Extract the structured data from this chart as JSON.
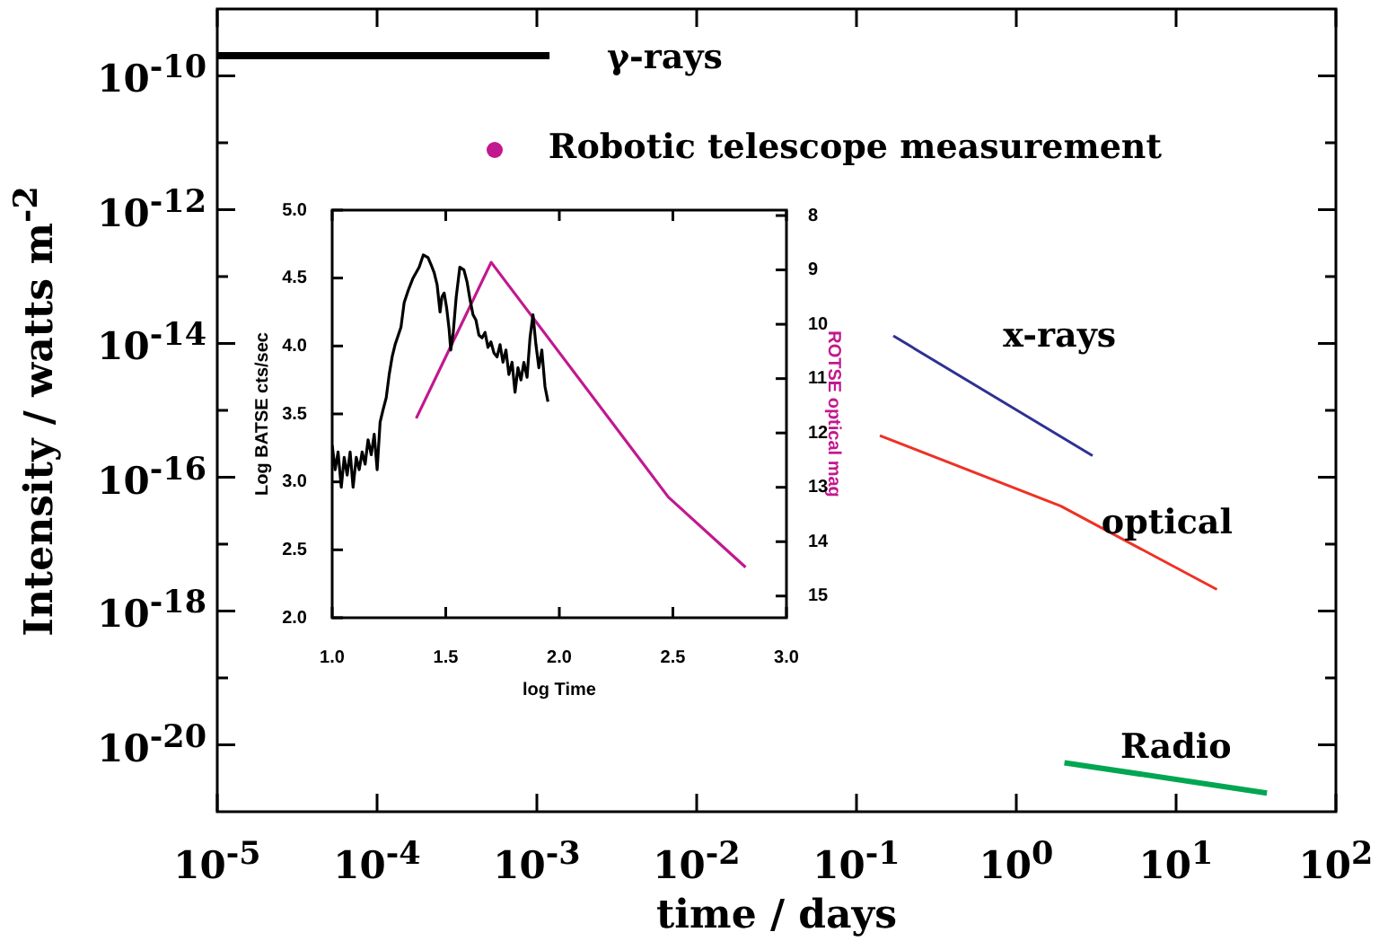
{
  "chart_data": [
    {
      "type": "line",
      "xlabel": "time / days",
      "ylabel": "Intensity / watts m$^{-2}$",
      "log": "xy",
      "marker": "none",
      "xlim": [
        1e-05,
        100
      ],
      "xticks": [
        {
          "value": 1e-05,
          "label": "10$^{-5}$"
        },
        {
          "value": 0.0001,
          "label": "10$^{-4}$"
        },
        {
          "value": 0.001,
          "label": "10$^{-3}$"
        },
        {
          "value": 0.01,
          "label": "10$^{-2}$"
        },
        {
          "value": 0.1,
          "label": "10$^{-1}$"
        },
        {
          "value": 1,
          "label": "10$^{0}$"
        },
        {
          "value": 10,
          "label": "10$^{1}$"
        },
        {
          "value": 100,
          "label": "10$^{2}$"
        }
      ],
      "ylim": [
        1e-21,
        1e-09
      ],
      "yticks": [
        {
          "value": 1e-20,
          "label": "10$^{-20}$"
        },
        {
          "value": 1e-19,
          "label": null
        },
        {
          "value": 1e-18,
          "label": "10$^{-18}$"
        },
        {
          "value": 1e-17,
          "label": null
        },
        {
          "value": 1e-16,
          "label": "10$^{-16}$"
        },
        {
          "value": 1e-15,
          "label": null
        },
        {
          "value": 1e-14,
          "label": "10$^{-14}$"
        },
        {
          "value": 1e-13,
          "label": null
        },
        {
          "value": 1e-12,
          "label": "10$^{-12}$"
        },
        {
          "value": 1e-11,
          "label": null
        },
        {
          "value": 1e-10,
          "label": "10$^{-10}$"
        }
      ],
      "series": [
        {
          "name": "γ-rays",
          "color": "#000000",
          "x": [
            1e-05,
            0.0012
          ],
          "values": [
            2e-10,
            2e-10
          ]
        },
        {
          "name": "x-rays",
          "color": "#2e3192",
          "x": [
            0.17,
            3
          ],
          "values": [
            1.3e-14,
            2.1e-16
          ]
        },
        {
          "name": "optical",
          "color": "#ee3124",
          "x": [
            0.14,
            1.9,
            18
          ],
          "values": [
            4.2e-16,
            3.7e-17,
            2.1e-18
          ]
        },
        {
          "name": "Radio",
          "color": "#00a651",
          "x": [
            2,
            37
          ],
          "values": [
            5.4e-21,
            1.9e-21
          ]
        }
      ],
      "annotations": [
        "Robotic telescope measurement"
      ]
    },
    {
      "type": "line",
      "xlabel": "log Time",
      "ylabel": "Log BATSE cts/sec",
      "y2label": "ROTSE optical mag",
      "marker": "none",
      "xlim": [
        1,
        3
      ],
      "xticks": [
        {
          "value": 1,
          "label": "1.0"
        },
        {
          "value": 1.5,
          "label": "1.5"
        },
        {
          "value": 2,
          "label": "2.0"
        },
        {
          "value": 2.5,
          "label": "2.5"
        },
        {
          "value": 3,
          "label": "3.0"
        }
      ],
      "ylim": [
        2,
        5
      ],
      "yticks": [
        {
          "value": 2,
          "label": "2.0"
        },
        {
          "value": 2.5,
          "label": "2.5"
        },
        {
          "value": 3,
          "label": "3.0"
        },
        {
          "value": 3.5,
          "label": "3.5"
        },
        {
          "value": 4,
          "label": "4.0"
        },
        {
          "value": 4.5,
          "label": "4.5"
        },
        {
          "value": 5,
          "label": "5.0"
        }
      ],
      "y2lim": [
        15.4,
        7.9
      ],
      "y2ticks": [
        8,
        9,
        10,
        11,
        12,
        13,
        14,
        15
      ],
      "series": [
        {
          "color": "#000000",
          "x": [
            1.0,
            1.013,
            1.026,
            1.04,
            1.053,
            1.066,
            1.079,
            1.092,
            1.106,
            1.119,
            1.132,
            1.145,
            1.158,
            1.172,
            1.185,
            1.198,
            1.211,
            1.224,
            1.238,
            1.251,
            1.264,
            1.277,
            1.303,
            1.317,
            1.335,
            1.356,
            1.383,
            1.401,
            1.422,
            1.435,
            1.449,
            1.462,
            1.475,
            1.483,
            1.493,
            1.504,
            1.515,
            1.522,
            1.533,
            1.546,
            1.562,
            1.58,
            1.594,
            1.607,
            1.62,
            1.633,
            1.646,
            1.66,
            1.673,
            1.686,
            1.699,
            1.712,
            1.726,
            1.739,
            1.752,
            1.765,
            1.778,
            1.792,
            1.805,
            1.818,
            1.831,
            1.844,
            1.858,
            1.871,
            1.884,
            1.897,
            1.91,
            1.923,
            1.937,
            1.95,
            1.955
          ],
          "values": [
            3.27,
            3.09,
            3.22,
            2.96,
            3.18,
            3.05,
            3.22,
            2.96,
            3.18,
            3.09,
            3.22,
            3.13,
            3.31,
            3.2,
            3.35,
            3.09,
            3.44,
            3.53,
            3.62,
            3.79,
            3.92,
            4.01,
            4.14,
            4.32,
            4.41,
            4.5,
            4.58,
            4.67,
            4.65,
            4.6,
            4.54,
            4.45,
            4.25,
            4.36,
            4.39,
            4.28,
            4.12,
            3.97,
            4.1,
            4.36,
            4.58,
            4.56,
            4.47,
            4.34,
            4.23,
            4.19,
            4.08,
            4.06,
            4.1,
            3.99,
            4.03,
            3.95,
            3.92,
            4.01,
            3.88,
            3.97,
            3.79,
            3.88,
            3.66,
            3.84,
            3.75,
            3.88,
            3.77,
            4.06,
            4.23,
            4.01,
            3.84,
            3.97,
            3.7,
            3.59,
            3.59
          ]
        },
        {
          "color": "#c2188f",
          "axis": "y2",
          "x": [
            1.37,
            1.7,
            2.48,
            2.82
          ],
          "values": [
            11.73,
            8.86,
            13.18,
            14.47
          ]
        }
      ]
    }
  ]
}
